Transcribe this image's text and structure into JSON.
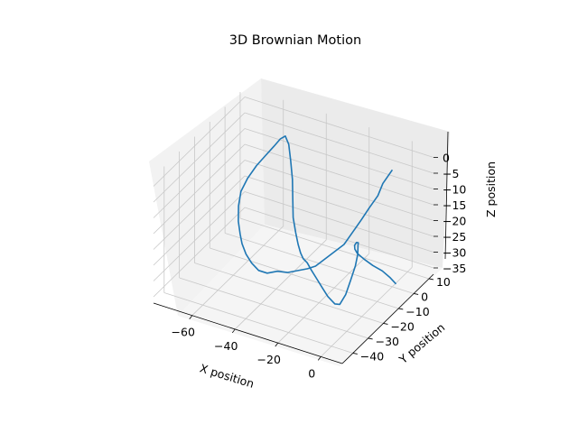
{
  "chart_data": {
    "type": "line3d",
    "title": "3D Brownian Motion",
    "xlabel": "X position",
    "ylabel": "Y position",
    "zlabel": "Z position",
    "xlim": [
      -78,
      10
    ],
    "ylim": [
      -47,
      13
    ],
    "zlim": [
      -37,
      3
    ],
    "xticks": [
      -60,
      -40,
      -20,
      0
    ],
    "yticks": [
      -40,
      -30,
      -20,
      -10,
      0,
      10
    ],
    "zticks": [
      0,
      -5,
      -10,
      -15,
      -20,
      -25,
      -30,
      -35
    ],
    "grid": true,
    "series": [
      {
        "color": "#1f77b4",
        "points": [
          [
            0,
            0,
            0
          ],
          [
            -3,
            -2,
            -4
          ],
          [
            -6,
            -1,
            -9
          ],
          [
            -8,
            -4,
            -12
          ],
          [
            -10,
            -6,
            -15
          ],
          [
            -12,
            -9,
            -18
          ],
          [
            -14,
            -12,
            -21
          ],
          [
            -17,
            -14,
            -23
          ],
          [
            -20,
            -16,
            -25
          ],
          [
            -23,
            -18,
            -27
          ],
          [
            -26,
            -19,
            -28
          ],
          [
            -30,
            -20,
            -29
          ],
          [
            -34,
            -21,
            -30
          ],
          [
            -38,
            -22,
            -30
          ],
          [
            -42,
            -23,
            -31
          ],
          [
            -46,
            -23,
            -31
          ],
          [
            -50,
            -22,
            -30
          ],
          [
            -54,
            -20,
            -29
          ],
          [
            -58,
            -17,
            -28
          ],
          [
            -61,
            -14,
            -27
          ],
          [
            -64,
            -11,
            -25
          ],
          [
            -66,
            -8,
            -22
          ],
          [
            -67,
            -5,
            -19
          ],
          [
            -66,
            -2,
            -16
          ],
          [
            -64,
            1,
            -13
          ],
          [
            -61,
            3,
            -10
          ],
          [
            -58,
            4,
            -7
          ],
          [
            -55,
            4,
            -4
          ],
          [
            -52,
            3,
            -2
          ],
          [
            -49,
            1,
            -3
          ],
          [
            -46,
            -2,
            -6
          ],
          [
            -43,
            -5,
            -10
          ],
          [
            -40,
            -9,
            -14
          ],
          [
            -37,
            -13,
            -17
          ],
          [
            -33,
            -17,
            -19
          ],
          [
            -29,
            -21,
            -20
          ],
          [
            -25,
            -25,
            -20
          ],
          [
            -21,
            -29,
            -19
          ],
          [
            -17,
            -32,
            -18
          ],
          [
            -13,
            -35,
            -18
          ],
          [
            -9,
            -37,
            -19
          ],
          [
            -5,
            -39,
            -20
          ],
          [
            -1,
            -41,
            -21
          ],
          [
            3,
            -42,
            -22
          ],
          [
            6,
            -43,
            -21
          ],
          [
            8,
            -42,
            -18
          ],
          [
            9,
            -40,
            -14
          ],
          [
            9,
            -37,
            -11
          ],
          [
            8,
            -34,
            -9
          ],
          [
            6,
            -31,
            -8
          ],
          [
            4,
            -28,
            -9
          ],
          [
            1,
            -25,
            -11
          ],
          [
            -2,
            -22,
            -14
          ],
          [
            -4,
            -19,
            -17
          ],
          [
            -5,
            -16,
            -20
          ],
          [
            -4,
            -13,
            -23
          ],
          [
            -2,
            -10,
            -26
          ],
          [
            1,
            -8,
            -28
          ],
          [
            4,
            -7,
            -30
          ],
          [
            6,
            -6,
            -32
          ]
        ]
      }
    ]
  }
}
